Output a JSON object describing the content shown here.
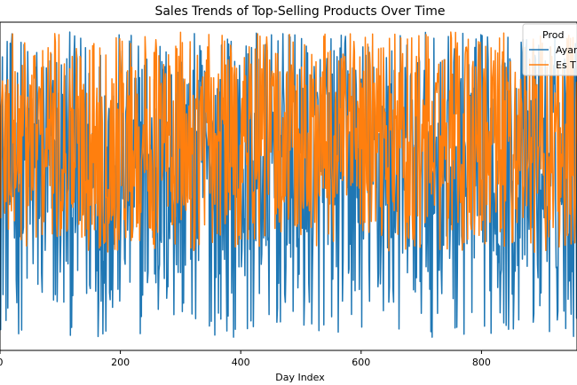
{
  "chart_data": {
    "type": "line",
    "title": "Sales Trends of Top-Selling Products Over Time",
    "xlabel": "Day Index",
    "ylabel": "",
    "xlim": [
      0,
      960
    ],
    "ylim": [
      0,
      100
    ],
    "x_ticks": [
      0,
      200,
      400,
      600,
      800
    ],
    "x_tick_labels": [
      "0",
      "200",
      "400",
      "600",
      "800"
    ],
    "legend_title": "Prod",
    "legend_position": "top-right",
    "series": [
      {
        "name": "Ayar",
        "color": "#1f77b4",
        "n_points": 960,
        "value_range": [
          4,
          97
        ],
        "pattern": "daily noise"
      },
      {
        "name": "Es T",
        "color": "#ff7f0e",
        "n_points": 960,
        "value_range": [
          18,
          97
        ],
        "pattern": "daily noise"
      }
    ]
  }
}
